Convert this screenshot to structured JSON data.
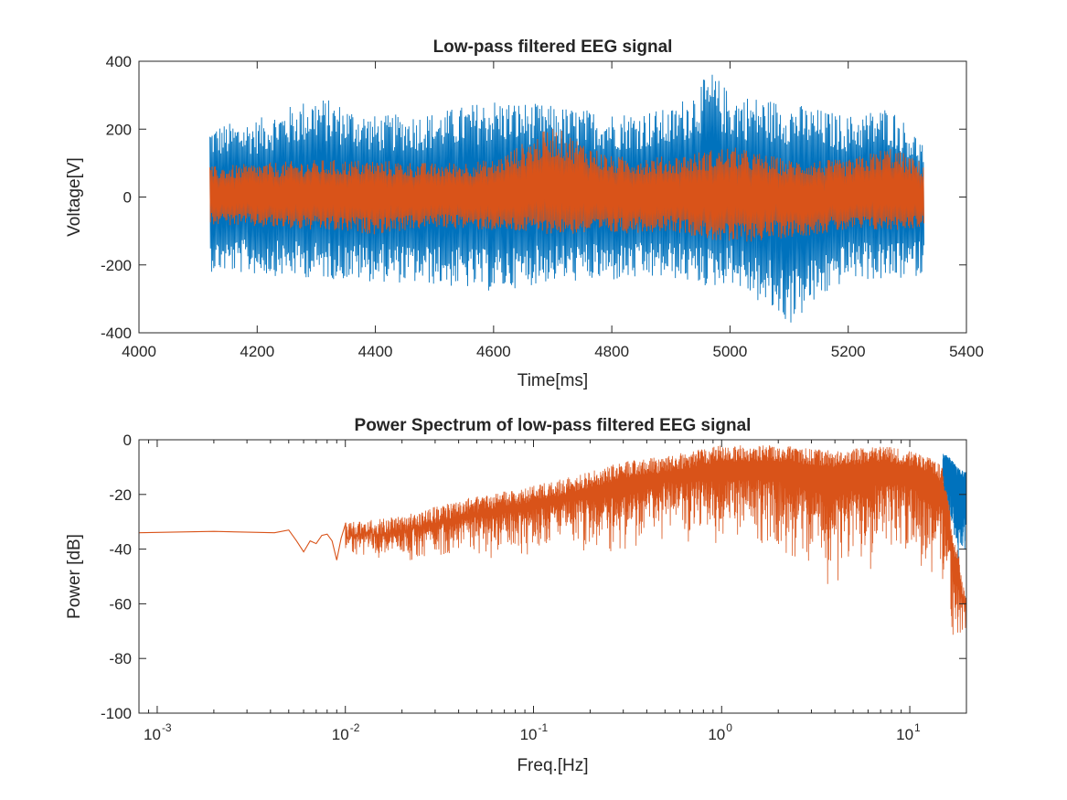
{
  "chart_data": [
    {
      "type": "line",
      "title": "Low-pass filtered EEG signal",
      "xlabel": "Time[ms]",
      "ylabel": "Voltage[V]",
      "xlim": [
        4000,
        5400
      ],
      "ylim": [
        -400,
        400
      ],
      "xticks": [
        "4000",
        "4200",
        "4400",
        "4600",
        "4800",
        "5000",
        "5200",
        "5400"
      ],
      "yticks": [
        "-400",
        "-200",
        "0",
        "200",
        "400"
      ],
      "grid": false,
      "legend": "none",
      "x_range_data": [
        4120,
        5328
      ],
      "series": [
        {
          "color": "#0072BD",
          "envelope_x": [
            4120,
            4200,
            4300,
            4400,
            4500,
            4600,
            4700,
            4800,
            4900,
            4970,
            5000,
            5100,
            5200,
            5270,
            5328
          ],
          "envelope_max": [
            210,
            230,
            300,
            240,
            250,
            290,
            270,
            250,
            260,
            370,
            310,
            280,
            240,
            270,
            160
          ],
          "envelope_min": [
            -220,
            -230,
            -240,
            -250,
            -260,
            -280,
            -250,
            -250,
            -240,
            -270,
            -250,
            -380,
            -240,
            -250,
            -230
          ]
        },
        {
          "color": "#D95319",
          "envelope_x": [
            4120,
            4200,
            4300,
            4400,
            4500,
            4600,
            4700,
            4800,
            4900,
            5000,
            5100,
            5200,
            5270,
            5328
          ],
          "envelope_max": [
            90,
            100,
            110,
            110,
            100,
            110,
            210,
            120,
            120,
            150,
            110,
            110,
            150,
            100
          ],
          "envelope_min": [
            -80,
            -90,
            -100,
            -110,
            -90,
            -100,
            -110,
            -110,
            -100,
            -140,
            -120,
            -100,
            -100,
            -90
          ]
        }
      ]
    },
    {
      "type": "line",
      "title": "Power Spectrum of low-pass filtered EEG signal",
      "xlabel": "Freq.[Hz]",
      "ylabel": "Power [dB]",
      "xscale": "log",
      "xlim": [
        0.0008,
        20
      ],
      "ylim": [
        -100,
        0
      ],
      "xticks": [
        {
          "base": "10",
          "exp": "-3"
        },
        {
          "base": "10",
          "exp": "-2"
        },
        {
          "base": "10",
          "exp": "-1"
        },
        {
          "base": "10",
          "exp": "0"
        },
        {
          "base": "10",
          "exp": "1"
        }
      ],
      "yticks": [
        "-100",
        "-80",
        "-60",
        "-40",
        "-20",
        "0"
      ],
      "grid": false,
      "legend": "none",
      "series": [
        {
          "color": "#0072BD",
          "envelope_f": [
            15,
            16,
            17,
            18,
            19,
            20
          ],
          "envelope_max": [
            -5,
            -6,
            -8,
            -10,
            -11,
            -12
          ],
          "envelope_min": [
            -25,
            -30,
            -38,
            -50,
            -45,
            -40
          ]
        },
        {
          "color": "#D95319",
          "x": [
            0.0008,
            0.002,
            0.0042,
            0.005,
            0.0055,
            0.006,
            0.0065,
            0.007,
            0.0075,
            0.008,
            0.0085,
            0.009,
            0.0095,
            0.01
          ],
          "y": [
            -34,
            -33.5,
            -34,
            -33,
            -37,
            -41,
            -37,
            -38,
            -35,
            -34.5,
            -37,
            -44,
            -36,
            -31
          ],
          "envelope_f": [
            0.01,
            0.02,
            0.04,
            0.08,
            0.15,
            0.3,
            0.5,
            1,
            2,
            4,
            7,
            10,
            13,
            15,
            16,
            17,
            18,
            19,
            20
          ],
          "envelope_max": [
            -30,
            -28,
            -22,
            -18,
            -14,
            -8,
            -6,
            -2,
            -2,
            -4,
            -2,
            -4,
            -6,
            -10,
            -20,
            -35,
            -40,
            -50,
            -58
          ],
          "envelope_min": [
            -44,
            -46,
            -45,
            -45,
            -42,
            -48,
            -38,
            -44,
            -44,
            -60,
            -45,
            -48,
            -58,
            -60,
            -62,
            -80,
            -86,
            -75,
            -70
          ]
        }
      ]
    }
  ]
}
